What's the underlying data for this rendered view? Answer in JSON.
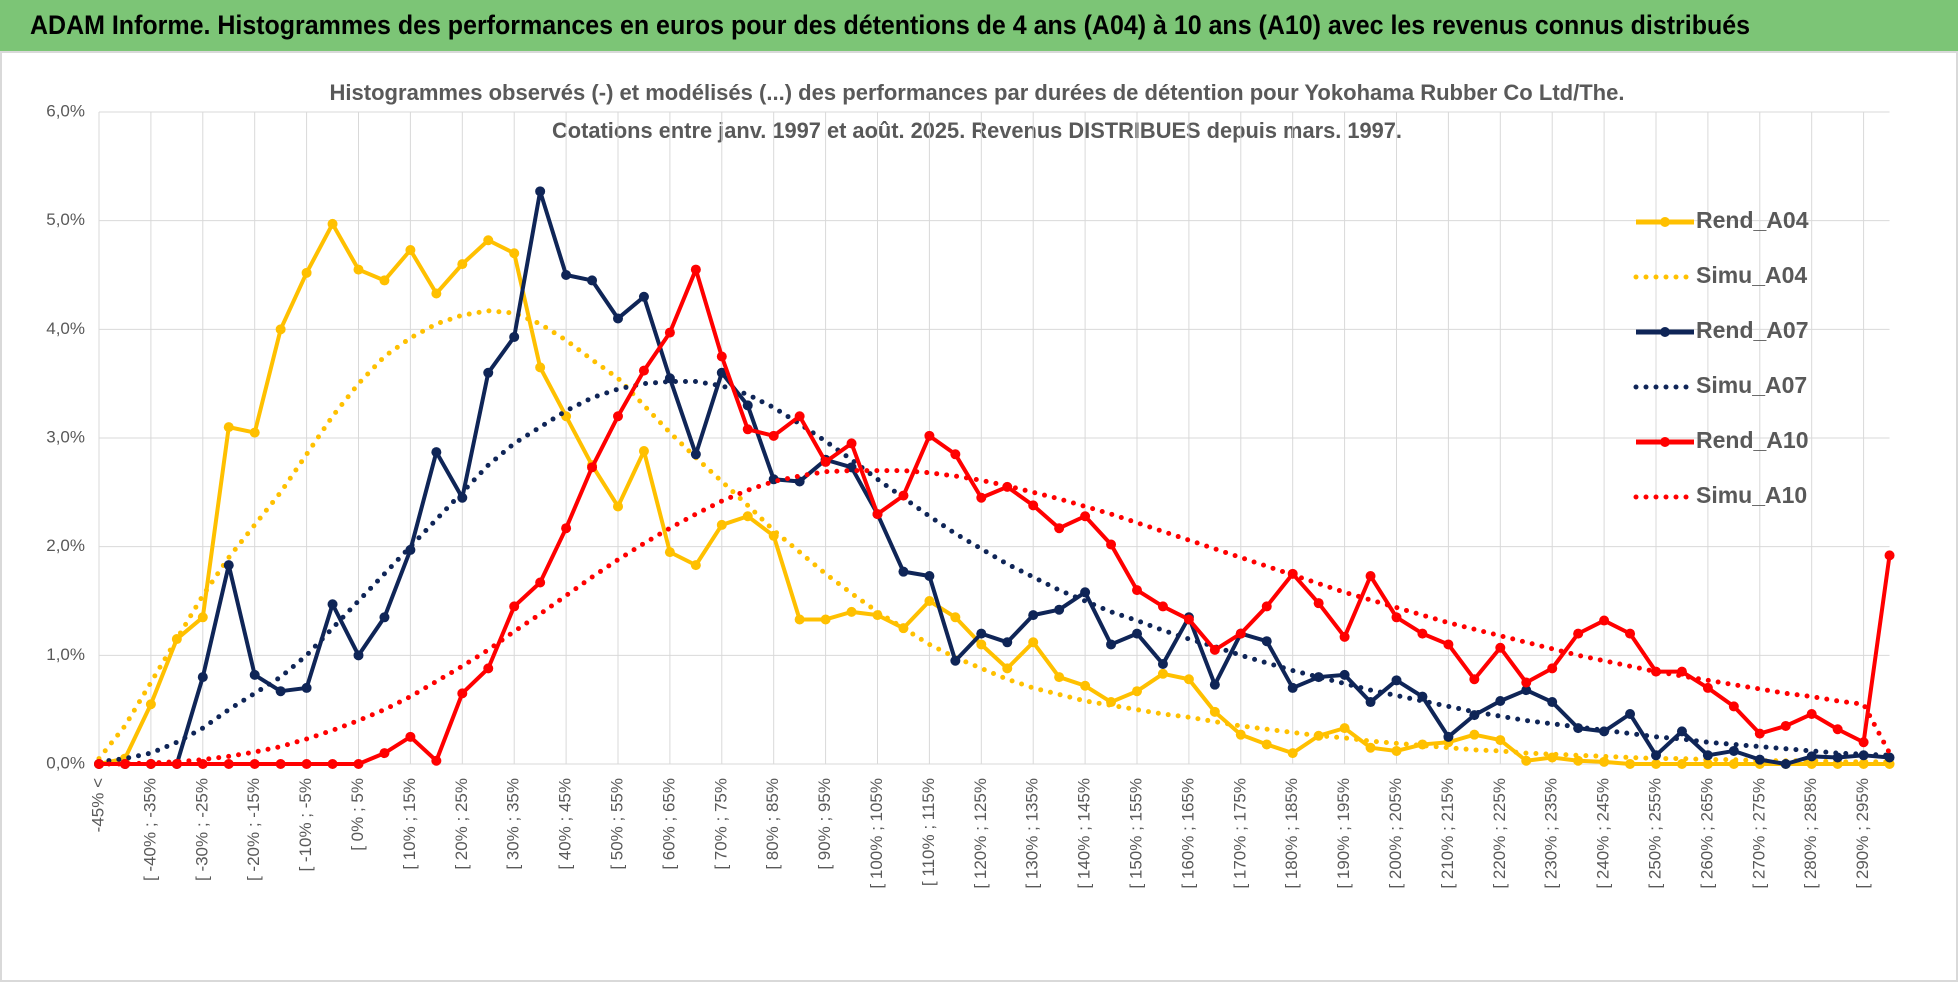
{
  "header": {
    "title": "ADAM Informe. Histogrammes des performances en euros pour des détentions de 4 ans (A04) à 10 ans (A10) avec les revenus connus distribués"
  },
  "chart_data": {
    "type": "line",
    "title": "Histogrammes observés (-) et modélisés (...) des performances par durées de détention pour Yokohama Rubber Co Ltd/The.",
    "subtitle": "Cotations entre janv. 1997 et août. 2025. Revenus DISTRIBUES depuis mars. 1997.",
    "categories": [
      "-45% <",
      null,
      "[ -40% ; -35%",
      null,
      "[ -30% ; -25%",
      null,
      "[ -20% ; -15%",
      null,
      "[ -10% ; -5%",
      null,
      "[ 0% ; 5%",
      null,
      "[ 10% ; 15%",
      null,
      "[ 20% ; 25%",
      null,
      "[ 30% ; 35%",
      null,
      "[ 40% ; 45%",
      null,
      "[ 50% ; 55%",
      null,
      "[ 60% ; 65%",
      null,
      "[ 70% ; 75%",
      null,
      "[ 80% ; 85%",
      null,
      "[ 90% ; 95%",
      null,
      "[ 100% ; 105%",
      null,
      "[ 110% ; 115%",
      null,
      "[ 120% ; 125%",
      null,
      "[ 130% ; 135%",
      null,
      "[ 140% ; 145%",
      null,
      "[ 150% ; 155%",
      null,
      "[ 160% ; 165%",
      null,
      "[ 170% ; 175%",
      null,
      "[ 180% ; 185%",
      null,
      "[ 190% ; 195%",
      null,
      "[ 200% ; 205%",
      null,
      "[ 210% ; 215%",
      null,
      "[ 220% ; 225%",
      null,
      "[ 230% ; 235%",
      null,
      "[ 240% ; 245%",
      null,
      "[ 250% ; 255%",
      null,
      "[ 260% ; 265%",
      null,
      "[ 270% ; 275%",
      null,
      "[ 280% ; 285%",
      null,
      "[ 290% ; 295%",
      null
    ],
    "ylim": [
      0,
      6
    ],
    "yticks": [
      {
        "value": 0,
        "label": "0,0%"
      },
      {
        "value": 1,
        "label": "1,0%"
      },
      {
        "value": 2,
        "label": "2,0%"
      },
      {
        "value": 3,
        "label": "3,0%"
      },
      {
        "value": 4,
        "label": "4,0%"
      },
      {
        "value": 5,
        "label": "5,0%"
      },
      {
        "value": 6,
        "label": "6,0%"
      }
    ],
    "grid": true,
    "legend": "right",
    "series": [
      {
        "name": "Rend_A04",
        "color": "#ffc000",
        "dash": "solid",
        "marker": true,
        "values": [
          0,
          0.05,
          0.55,
          1.15,
          1.35,
          3.1,
          3.05,
          4.0,
          4.52,
          4.97,
          4.55,
          4.45,
          4.73,
          4.33,
          4.6,
          4.82,
          4.7,
          3.65,
          3.2,
          2.75,
          2.37,
          2.88,
          1.95,
          1.83,
          2.2,
          2.28,
          2.1,
          1.33,
          1.33,
          1.4,
          1.37,
          1.25,
          1.5,
          1.35,
          1.1,
          0.88,
          1.12,
          0.8,
          0.72,
          0.57,
          0.67,
          0.83,
          0.78,
          0.48,
          0.27,
          0.18,
          0.1,
          0.26,
          0.33,
          0.15,
          0.12,
          0.18,
          0.2,
          0.27,
          0.22,
          0.03,
          0.06,
          0.03,
          0.02,
          0,
          0,
          0,
          0,
          0,
          0,
          0,
          0,
          0,
          0,
          0
        ]
      },
      {
        "name": "Simu_A04",
        "color": "#ffc000",
        "dash": "dotted",
        "marker": false,
        "values": [
          0.05,
          0.35,
          0.75,
          1.15,
          1.55,
          1.9,
          2.2,
          2.5,
          2.85,
          3.2,
          3.5,
          3.75,
          3.92,
          4.05,
          4.13,
          4.17,
          4.15,
          4.05,
          3.9,
          3.72,
          3.55,
          3.3,
          3.05,
          2.82,
          2.6,
          2.38,
          2.15,
          1.95,
          1.75,
          1.57,
          1.4,
          1.25,
          1.1,
          0.98,
          0.88,
          0.78,
          0.7,
          0.64,
          0.58,
          0.54,
          0.5,
          0.46,
          0.43,
          0.39,
          0.35,
          0.32,
          0.29,
          0.26,
          0.24,
          0.21,
          0.19,
          0.17,
          0.15,
          0.13,
          0.12,
          0.1,
          0.09,
          0.08,
          0.07,
          0.06,
          0.05,
          0.05,
          0.04,
          0.04,
          0.03,
          0.03,
          0.03,
          0.02,
          0.02,
          0.02
        ]
      },
      {
        "name": "Rend_A07",
        "color": "#0f2557",
        "dash": "solid",
        "marker": true,
        "values": [
          0,
          0,
          0,
          0,
          0.8,
          1.83,
          0.82,
          0.67,
          0.7,
          1.47,
          1.0,
          1.35,
          1.97,
          2.87,
          2.45,
          3.6,
          3.93,
          5.27,
          4.5,
          4.45,
          4.1,
          4.3,
          3.55,
          2.85,
          3.6,
          3.3,
          2.62,
          2.6,
          2.8,
          2.73,
          2.3,
          1.77,
          1.73,
          0.95,
          1.2,
          1.12,
          1.37,
          1.42,
          1.58,
          1.1,
          1.2,
          0.92,
          1.35,
          0.73,
          1.2,
          1.13,
          0.7,
          0.8,
          0.82,
          0.57,
          0.77,
          0.62,
          0.25,
          0.45,
          0.58,
          0.68,
          0.57,
          0.33,
          0.3,
          0.46,
          0.08,
          0.3,
          0.08,
          0.12,
          0.04,
          0,
          0.07,
          0.06,
          0.08,
          0.06
        ]
      },
      {
        "name": "Simu_A07",
        "color": "#0f2557",
        "dash": "dotted",
        "marker": false,
        "values": [
          0.02,
          0.05,
          0.1,
          0.2,
          0.33,
          0.5,
          0.65,
          0.8,
          1.0,
          1.25,
          1.5,
          1.75,
          2.0,
          2.25,
          2.5,
          2.75,
          2.95,
          3.1,
          3.25,
          3.37,
          3.45,
          3.5,
          3.52,
          3.52,
          3.48,
          3.4,
          3.28,
          3.13,
          2.97,
          2.8,
          2.62,
          2.45,
          2.28,
          2.12,
          1.98,
          1.84,
          1.72,
          1.6,
          1.5,
          1.4,
          1.32,
          1.23,
          1.15,
          1.08,
          1.0,
          0.93,
          0.86,
          0.8,
          0.74,
          0.68,
          0.63,
          0.58,
          0.53,
          0.48,
          0.44,
          0.4,
          0.37,
          0.34,
          0.31,
          0.28,
          0.25,
          0.23,
          0.2,
          0.18,
          0.16,
          0.14,
          0.12,
          0.1,
          0.09,
          0.08
        ]
      },
      {
        "name": "Rend_A10",
        "color": "#ff0000",
        "dash": "solid",
        "marker": true,
        "values": [
          0,
          0,
          0,
          0,
          0,
          0,
          0,
          0,
          0,
          0,
          0,
          0.1,
          0.25,
          0.03,
          0.65,
          0.88,
          1.45,
          1.67,
          2.17,
          2.73,
          3.2,
          3.62,
          3.97,
          4.55,
          3.75,
          3.08,
          3.02,
          3.2,
          2.78,
          2.95,
          2.3,
          2.47,
          3.02,
          2.85,
          2.45,
          2.55,
          2.38,
          2.17,
          2.28,
          2.02,
          1.6,
          1.45,
          1.33,
          1.05,
          1.2,
          1.45,
          1.75,
          1.48,
          1.17,
          1.73,
          1.35,
          1.2,
          1.1,
          0.78,
          1.07,
          0.75,
          0.88,
          1.2,
          1.32,
          1.2,
          0.85,
          0.85,
          0.7,
          0.53,
          0.28,
          0.35,
          0.46,
          0.32,
          0.2,
          1.92
        ]
      },
      {
        "name": "Simu_A10",
        "color": "#ff0000",
        "dash": "dotted",
        "marker": false,
        "values": [
          0,
          0,
          0.01,
          0.02,
          0.04,
          0.07,
          0.11,
          0.16,
          0.23,
          0.31,
          0.4,
          0.5,
          0.62,
          0.76,
          0.9,
          1.05,
          1.22,
          1.38,
          1.55,
          1.72,
          1.88,
          2.03,
          2.17,
          2.3,
          2.42,
          2.52,
          2.6,
          2.65,
          2.69,
          2.7,
          2.7,
          2.7,
          2.68,
          2.65,
          2.61,
          2.56,
          2.5,
          2.44,
          2.37,
          2.3,
          2.22,
          2.14,
          2.06,
          1.98,
          1.9,
          1.82,
          1.74,
          1.66,
          1.58,
          1.51,
          1.44,
          1.37,
          1.3,
          1.24,
          1.18,
          1.12,
          1.06,
          1.0,
          0.95,
          0.9,
          0.85,
          0.81,
          0.77,
          0.73,
          0.69,
          0.65,
          0.62,
          0.58,
          0.55,
          0.1
        ]
      }
    ]
  }
}
